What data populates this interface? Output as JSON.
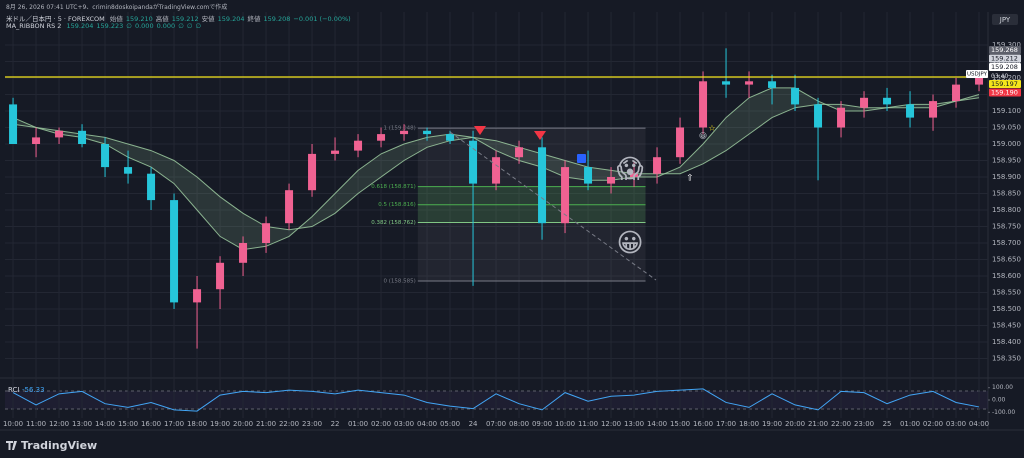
{
  "header": {
    "created": "8月 26, 2026 07:41 UTC+9、crimin8doskoipandaがTradingView.comで作成",
    "symbol": "米ドル／日本円 · 5 · FOREXCOM",
    "ohlc": [
      {
        "label": "始値",
        "value": "159.210"
      },
      {
        "label": "高値",
        "value": "159.212"
      },
      {
        "label": "安値",
        "value": "159.204"
      },
      {
        "label": "終値",
        "value": "159.208"
      }
    ],
    "change": "−0.001 (−0.00%)",
    "indicator": "MA_RIBBON RS 2",
    "indicator_values": [
      "159.204",
      "159.223",
      "∅",
      "0.000",
      "0.000",
      "∅",
      "∅",
      "∅"
    ],
    "currency": "JPY",
    "logo": "TradingView"
  },
  "chart_data": {
    "type": "candlestick",
    "x": [
      0,
      1,
      2,
      3,
      4,
      5,
      6,
      7,
      8,
      9,
      10,
      11,
      12,
      13,
      14,
      15,
      16,
      17,
      18,
      19,
      20,
      21,
      22,
      23,
      24,
      25,
      26,
      27,
      28,
      29,
      30,
      31,
      32,
      33,
      34,
      35,
      36,
      37,
      38,
      39,
      40,
      41,
      42
    ],
    "open": [
      159.12,
      159.0,
      159.02,
      159.04,
      159.0,
      158.93,
      158.91,
      158.83,
      158.52,
      158.56,
      158.64,
      158.7,
      158.76,
      158.86,
      158.97,
      158.98,
      159.01,
      159.03,
      159.04,
      159.03,
      159.01,
      158.88,
      158.96,
      158.99,
      158.76,
      158.93,
      158.88,
      158.9,
      158.91,
      158.96,
      159.05,
      159.19,
      159.18,
      159.19,
      159.17,
      159.12,
      159.05,
      159.11,
      159.14,
      159.12,
      159.08,
      159.13,
      159.18
    ],
    "high": [
      159.14,
      159.05,
      159.05,
      159.06,
      159.02,
      158.98,
      158.93,
      158.85,
      158.6,
      158.66,
      158.72,
      158.78,
      158.88,
      159.0,
      159.02,
      159.03,
      159.05,
      159.06,
      159.05,
      159.04,
      159.04,
      158.98,
      159.01,
      159.02,
      158.95,
      158.98,
      158.93,
      158.95,
      158.99,
      159.08,
      159.22,
      159.29,
      159.22,
      159.21,
      159.21,
      159.14,
      159.13,
      159.16,
      159.17,
      159.16,
      159.15,
      159.2,
      159.21
    ],
    "low": [
      159.0,
      158.96,
      159.0,
      158.99,
      158.9,
      158.88,
      158.8,
      158.5,
      158.38,
      158.5,
      158.6,
      158.67,
      158.74,
      158.84,
      158.95,
      158.96,
      158.99,
      159.01,
      159.01,
      159.0,
      158.57,
      158.86,
      158.94,
      158.71,
      158.73,
      158.86,
      158.85,
      158.87,
      158.88,
      158.94,
      159.03,
      159.14,
      159.14,
      159.12,
      159.1,
      158.89,
      159.02,
      159.08,
      159.1,
      159.05,
      159.04,
      159.11,
      159.16
    ],
    "close": [
      159.0,
      159.02,
      159.04,
      159.0,
      158.93,
      158.91,
      158.83,
      158.52,
      158.56,
      158.64,
      158.7,
      158.76,
      158.86,
      158.97,
      158.98,
      159.01,
      159.03,
      159.04,
      159.03,
      159.01,
      158.88,
      158.96,
      158.99,
      158.76,
      158.93,
      158.88,
      158.9,
      158.91,
      158.96,
      159.05,
      159.19,
      159.18,
      159.19,
      159.17,
      159.12,
      159.05,
      159.11,
      159.14,
      159.12,
      159.08,
      159.13,
      159.18,
      159.2
    ],
    "up_color": "#f06292",
    "down_color": "#26c6da",
    "xlim": [
      -0.35,
      42.39
    ],
    "xticks": [
      {
        "value": 0,
        "label": "10:00"
      },
      {
        "value": 1,
        "label": "11:00"
      },
      {
        "value": 2,
        "label": "12:00"
      },
      {
        "value": 3,
        "label": "13:00"
      },
      {
        "value": 4,
        "label": "14:00"
      },
      {
        "value": 5,
        "label": "15:00"
      },
      {
        "value": 6,
        "label": "16:00"
      },
      {
        "value": 7,
        "label": "17:00"
      },
      {
        "value": 8,
        "label": "18:00"
      },
      {
        "value": 9,
        "label": "19:00"
      },
      {
        "value": 10,
        "label": "20:00"
      },
      {
        "value": 11,
        "label": "21:00"
      },
      {
        "value": 12,
        "label": "22:00"
      },
      {
        "value": 13,
        "label": "23:00"
      },
      {
        "value": 14,
        "label": "22"
      },
      {
        "value": 15,
        "label": "01:00"
      },
      {
        "value": 16,
        "label": "02:00"
      },
      {
        "value": 17,
        "label": "03:00"
      },
      {
        "value": 18,
        "label": "04:00"
      },
      {
        "value": 19,
        "label": "05:00"
      },
      {
        "value": 20,
        "label": "24"
      },
      {
        "value": 21,
        "label": "07:00"
      },
      {
        "value": 22,
        "label": "08:00"
      },
      {
        "value": 23,
        "label": "09:00"
      },
      {
        "value": 24,
        "label": "10:00"
      },
      {
        "value": 25,
        "label": "11:00"
      },
      {
        "value": 26,
        "label": "12:00"
      },
      {
        "value": 27,
        "label": "13:00"
      },
      {
        "value": 28,
        "label": "14:00"
      },
      {
        "value": 29,
        "label": "15:00"
      },
      {
        "value": 30,
        "label": "16:00"
      },
      {
        "value": 31,
        "label": "17:00"
      },
      {
        "value": 32,
        "label": "18:00"
      },
      {
        "value": 33,
        "label": "19:00"
      },
      {
        "value": 34,
        "label": "20:00"
      },
      {
        "value": 35,
        "label": "21:00"
      },
      {
        "value": 36,
        "label": "22:00"
      },
      {
        "value": 37,
        "label": "23:00"
      },
      {
        "value": 38,
        "label": "25"
      },
      {
        "value": 39,
        "label": "01:00"
      },
      {
        "value": 40,
        "label": "02:00"
      },
      {
        "value": 41,
        "label": "03:00"
      },
      {
        "value": 42,
        "label": "04:00"
      }
    ],
    "ylim": [
      158.3,
      159.4
    ],
    "yticks": [
      {
        "value": 159.3,
        "label": "159.300"
      },
      {
        "value": 159.25,
        "label": "159.250"
      },
      {
        "value": 159.2,
        "label": "159.200"
      },
      {
        "value": 159.15,
        "label": "159.150"
      },
      {
        "value": 159.1,
        "label": "159.100"
      },
      {
        "value": 159.05,
        "label": "159.050"
      },
      {
        "value": 159.0,
        "label": "159.000"
      },
      {
        "value": 158.95,
        "label": "158.950"
      },
      {
        "value": 158.9,
        "label": "158.900"
      },
      {
        "value": 158.85,
        "label": "158.850"
      },
      {
        "value": 158.8,
        "label": "158.800"
      },
      {
        "value": 158.75,
        "label": "158.750"
      },
      {
        "value": 158.7,
        "label": "158.700"
      },
      {
        "value": 158.65,
        "label": "158.650"
      },
      {
        "value": 158.6,
        "label": "158.600"
      },
      {
        "value": 158.55,
        "label": "158.550"
      },
      {
        "value": 158.5,
        "label": "158.500"
      },
      {
        "value": 158.45,
        "label": "158.450"
      },
      {
        "value": 158.4,
        "label": "158.400"
      },
      {
        "value": 158.35,
        "label": "158.350"
      }
    ],
    "grid": true,
    "ribbon": {
      "color": "#a5d6a7",
      "fast": [
        159.08,
        159.05,
        159.03,
        159.02,
        159.0,
        158.96,
        158.93,
        158.88,
        158.8,
        158.72,
        158.68,
        158.69,
        158.72,
        158.78,
        158.85,
        158.92,
        158.97,
        159.0,
        159.02,
        159.03,
        159.02,
        158.98,
        158.95,
        158.93,
        158.9,
        158.89,
        158.89,
        158.9,
        158.9,
        158.93,
        159.0,
        159.08,
        159.14,
        159.17,
        159.17,
        159.13,
        159.1,
        159.1,
        159.11,
        159.11,
        159.11,
        159.13,
        159.15
      ],
      "slow": [
        159.06,
        159.05,
        159.04,
        159.03,
        159.02,
        159.0,
        158.98,
        158.95,
        158.9,
        158.84,
        158.79,
        158.75,
        158.74,
        158.75,
        158.79,
        158.85,
        158.9,
        158.95,
        158.99,
        159.01,
        159.02,
        159.01,
        158.99,
        158.97,
        158.95,
        158.93,
        158.92,
        158.91,
        158.91,
        158.91,
        158.94,
        158.98,
        159.03,
        159.08,
        159.11,
        159.12,
        159.12,
        159.11,
        159.11,
        159.12,
        159.12,
        159.13,
        159.14
      ]
    },
    "hline": {
      "value": 159.203,
      "color": "#f5e51b"
    },
    "fib": {
      "x": [
        17.6,
        27.5
      ],
      "levels": [
        {
          "value": 159.048,
          "label": "1 (159.048)"
        },
        {
          "value": 158.871,
          "label": "0.618 (158.871)"
        },
        {
          "value": 158.816,
          "label": "0.5 (158.816)"
        },
        {
          "value": 158.762,
          "label": "0.382 (158.762)"
        },
        {
          "value": 158.585,
          "label": "0 (158.585)"
        }
      ]
    },
    "price_tags": [
      {
        "value": 159.268,
        "label": "159.268",
        "bg": "#5d606b",
        "fg": "#ffffff"
      },
      {
        "value": 159.212,
        "label": "159.212",
        "bg": "#d1d4dc",
        "fg": "#131722"
      },
      {
        "value": 159.208,
        "label": "159.208",
        "bg": "#ffffff",
        "fg": "#131722"
      },
      {
        "value": 159.197,
        "label": "159.197",
        "bg": "#f5e51b",
        "fg": "#131722"
      },
      {
        "value": 159.19,
        "label": "159.190",
        "bg": "#f23645",
        "fg": "#ffffff"
      }
    ],
    "symbol_tag": "USDJPY",
    "countdown": "03:40",
    "rci": {
      "label": "RCI",
      "value_label": "-56.33",
      "color": "#42a5f5",
      "values": [
        60,
        -40,
        50,
        70,
        -30,
        -60,
        -20,
        -80,
        -90,
        40,
        70,
        60,
        80,
        70,
        50,
        80,
        60,
        40,
        -20,
        -50,
        -70,
        50,
        -30,
        -80,
        60,
        -10,
        30,
        40,
        70,
        80,
        90,
        -20,
        -60,
        50,
        -40,
        -80,
        70,
        60,
        -30,
        40,
        70,
        -20,
        -56.33
      ],
      "ylim": [
        -130,
        130
      ],
      "yticks": [
        {
          "value": 100,
          "label": "100.00"
        },
        {
          "value": 0,
          "label": "0.00"
        },
        {
          "value": -100,
          "label": "-100.00"
        }
      ]
    }
  }
}
